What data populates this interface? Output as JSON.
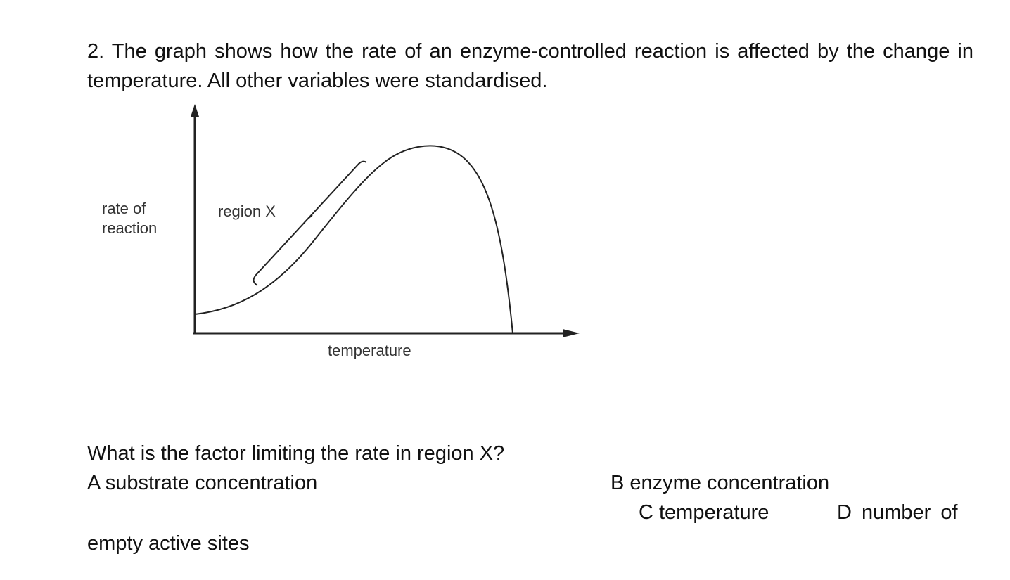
{
  "question": {
    "stem": "2. The graph shows how the rate of an enzyme-controlled reaction is affected by the change in temperature. All other variables were standardised.",
    "prompt": "What is the factor limiting the rate in region X?",
    "options": {
      "a": "A substrate concentration",
      "b": "B enzyme concentration",
      "c": "C temperature",
      "d_line1": "D number of",
      "d_line2": "empty active sites"
    }
  },
  "figure": {
    "ylabel_line1": "rate of",
    "ylabel_line2": "reaction",
    "xlabel": "temperature",
    "region_label": "region X"
  }
}
